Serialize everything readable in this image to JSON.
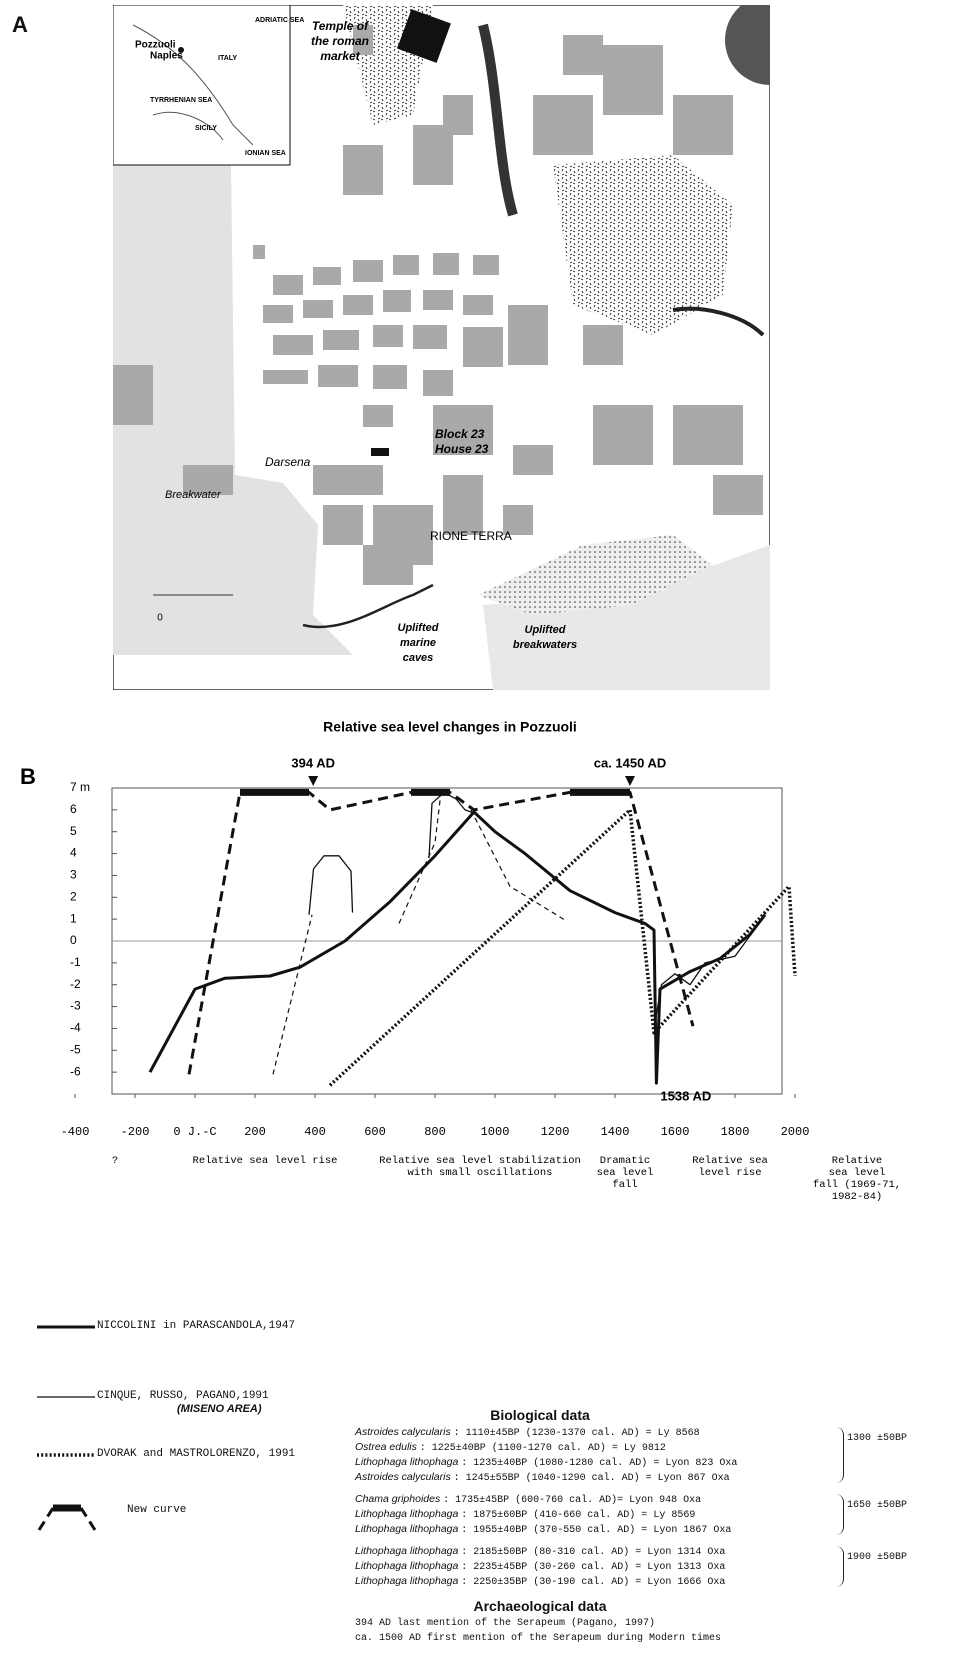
{
  "panel_labels": [
    "A",
    "B"
  ],
  "map": {
    "inset_labels": [
      "ADRIATIC SEA",
      "Pozzuoli",
      "Naples",
      "ITALY",
      "TYRRHENIAN SEA",
      "SICILY",
      "IONIAN SEA"
    ],
    "labels": [
      [
        "Temple of",
        "the roman",
        "market"
      ],
      [
        "Block 23",
        "House 23"
      ],
      [
        "Darsena"
      ],
      [
        "Breakwater"
      ],
      [
        "RIONE TERRA"
      ],
      [
        "Uplifted",
        "marine",
        "caves"
      ],
      [
        "Uplifted",
        "breakwaters"
      ],
      [
        "0"
      ]
    ]
  },
  "chart_data": {
    "type": "line",
    "title": "Relative sea level changes in Pozzuoli",
    "xlim": [
      -400,
      2000
    ],
    "xticks": [
      -400,
      -200,
      {
        "value": 0,
        "label": "0 J.-C"
      },
      200,
      400,
      600,
      800,
      1000,
      1200,
      1400,
      1600,
      1800,
      2000
    ],
    "ylim": [
      -7,
      7
    ],
    "yticks": [
      -6,
      -5,
      -4,
      -3,
      -2,
      -1,
      0,
      1,
      2,
      3,
      4,
      5,
      6,
      {
        "value": 7,
        "label": "7 m"
      }
    ],
    "zero_line": true,
    "series": [
      {
        "name": "NICCOLINI in PARASCANDOLA,1947",
        "style": "thick",
        "color": "#111111",
        "x": [
          -150,
          0,
          100,
          250,
          350,
          500,
          650,
          800,
          930,
          1000,
          1100,
          1250,
          1400,
          1500,
          1530,
          1538,
          1550,
          1650,
          1750,
          1850,
          1900
        ],
        "values": [
          -6,
          -2.2,
          -1.7,
          -1.6,
          -1.2,
          0,
          1.8,
          3.9,
          5.9,
          5,
          4,
          2.3,
          1.3,
          0.8,
          0.5,
          -6.5,
          -2.2,
          -1.4,
          -0.8,
          0.3,
          1.2
        ]
      },
      {
        "name": "CINQUE, RUSSO, PAGANO,1991",
        "area": "(MISENO AREA)",
        "style": "thin",
        "color": "#111111",
        "x": [
          380,
          395,
          430,
          480,
          520,
          525,
          600,
          780,
          790,
          830,
          870,
          900,
          940,
          1000,
          1530,
          1555,
          1600,
          1650,
          1700,
          1800,
          1880,
          1900
        ],
        "values": [
          1.2,
          3.3,
          3.9,
          3.9,
          3.2,
          1.3,
          null,
          3.8,
          6.3,
          6.8,
          6.5,
          6,
          5.8,
          null,
          -4,
          -2,
          -1.5,
          -2,
          -1,
          -0.7,
          0.8,
          1.3
        ]
      },
      {
        "style": "dashed-thin",
        "color": "#111111",
        "x": [
          260,
          390,
          500,
          680,
          800,
          820,
          850,
          900,
          920,
          1050,
          1240
        ],
        "values": [
          -6.1,
          1.2,
          null,
          0.8,
          4.5,
          6.8,
          6.7,
          null,
          6,
          2.5,
          0.9
        ]
      },
      {
        "name": "DVORAK and MASTROLORENZO, 1991",
        "style": "dotted",
        "color": "#111111",
        "x": [
          450,
          1450,
          1530,
          1980,
          2000
        ],
        "values": [
          -6.6,
          6,
          -4.2,
          2.5,
          -1.6
        ]
      },
      {
        "name": "New curve",
        "style": "new",
        "color": "#111111",
        "x": [
          -20,
          150,
          380,
          450,
          720,
          850,
          930,
          1250,
          1450,
          1660
        ],
        "values": [
          -6.1,
          6.8,
          6.8,
          6,
          6.8,
          6.8,
          6,
          6.8,
          6.8,
          -3.9
        ]
      }
    ],
    "annotations": [
      {
        "text": "394 AD",
        "x": 394,
        "y": 7
      },
      {
        "text": "ca. 1450 AD",
        "x": 1450,
        "y": 7
      },
      {
        "text": "1538 AD",
        "x": 1538,
        "y": -6.5
      }
    ],
    "phases": [
      [
        "?"
      ],
      [
        "Relative sea level rise"
      ],
      [
        "Relative sea level stabilization",
        "with small oscillations"
      ],
      [
        "Dramatic",
        "sea level",
        "fall"
      ],
      [
        "Relative sea",
        "level rise"
      ],
      [
        "Relative",
        "sea level",
        "fall (1969-71,",
        "1982-84)"
      ]
    ]
  },
  "biological_data": {
    "title": "Biological data",
    "groups": [
      {
        "label": "1300 ±50BP",
        "rows": [
          {
            "species": "Astroides calycularis",
            "text": ": 1110±45BP (1230-1370 cal. AD) = Ly 8568"
          },
          {
            "species": "Ostrea edulis",
            "text": ": 1225±40BP (1100-1270 cal. AD) = Ly 9812"
          },
          {
            "species": "Lithophaga lithophaga",
            "text": ": 1235±40BP (1080-1280 cal. AD) = Lyon 823 Oxa"
          },
          {
            "species": "Astroides calycularis",
            "text": ": 1245±55BP (1040-1290 cal. AD) = Lyon 867 Oxa"
          }
        ]
      },
      {
        "label": "1650 ±50BP",
        "rows": [
          {
            "species": "Chama griphoides",
            "text": ": 1735±45BP (600-760 cal. AD)= Lyon 948 Oxa"
          },
          {
            "species": "Lithophaga lithophaga",
            "text": ": 1875±60BP (410-660 cal. AD) = Ly 8569"
          },
          {
            "species": "Lithophaga lithophaga",
            "text": ": 1955±40BP (370-550 cal. AD) = Lyon 1867 Oxa"
          }
        ]
      },
      {
        "label": "1900 ±50BP",
        "rows": [
          {
            "species": "Lithophaga lithophaga",
            "text": ": 2185±50BP (80-310 cal. AD) = Lyon 1314 Oxa"
          },
          {
            "species": "Lithophaga lithophaga",
            "text": ": 2235±45BP (30-260 cal. AD) = Lyon 1313 Oxa"
          },
          {
            "species": "Lithophaga lithophaga",
            "text": ": 2250±35BP (30-190 cal. AD) = Lyon 1666 Oxa"
          }
        ]
      }
    ]
  },
  "archaeological_data": {
    "title": "Archaeological data",
    "lines": [
      "394 AD last mention of the Serapeum (Pagano, 1997)",
      "ca. 1500 AD first mention of the Serapeum during Modern times"
    ]
  }
}
